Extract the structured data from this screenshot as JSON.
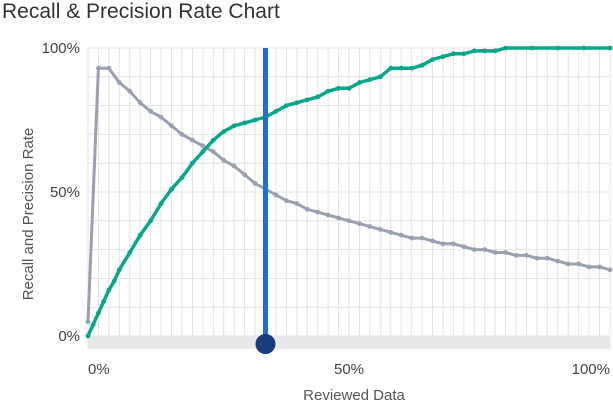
{
  "chart_data": {
    "type": "line",
    "title": "Recall & Precision Rate Chart",
    "xlabel": "Reviewed Data",
    "ylabel": "Recall and Precision Rate",
    "xlim": [
      0,
      100
    ],
    "ylim": [
      0,
      100
    ],
    "x_ticks": [
      "0%",
      "50%",
      "100%"
    ],
    "y_ticks": [
      "0%",
      "50%",
      "100%"
    ],
    "grid": true,
    "colors": {
      "recall": "#0aa68a",
      "precision": "#9aa0b0",
      "marker": "#1f6fd1",
      "marker_handle": "#173e7a"
    },
    "marker_x": 34,
    "series": [
      {
        "values": [
          [
            0,
            0
          ],
          [
            1,
            4
          ],
          [
            2,
            8
          ],
          [
            3,
            12
          ],
          [
            4,
            16
          ],
          [
            5,
            19
          ],
          [
            6,
            23
          ],
          [
            8,
            29
          ],
          [
            10,
            35
          ],
          [
            12,
            40
          ],
          [
            14,
            46
          ],
          [
            16,
            51
          ],
          [
            18,
            55
          ],
          [
            20,
            60
          ],
          [
            22,
            64
          ],
          [
            24,
            68
          ],
          [
            26,
            71
          ],
          [
            28,
            73
          ],
          [
            30,
            74
          ],
          [
            32,
            75
          ],
          [
            34,
            76
          ],
          [
            36,
            78
          ],
          [
            38,
            80
          ],
          [
            40,
            81
          ],
          [
            42,
            82
          ],
          [
            44,
            83
          ],
          [
            46,
            85
          ],
          [
            48,
            86
          ],
          [
            50,
            86
          ],
          [
            52,
            88
          ],
          [
            54,
            89
          ],
          [
            56,
            90
          ],
          [
            58,
            93
          ],
          [
            60,
            93
          ],
          [
            62,
            93
          ],
          [
            64,
            94
          ],
          [
            66,
            96
          ],
          [
            68,
            97
          ],
          [
            70,
            98
          ],
          [
            72,
            98
          ],
          [
            74,
            99
          ],
          [
            76,
            99
          ],
          [
            78,
            99
          ],
          [
            80,
            100
          ],
          [
            85,
            100
          ],
          [
            90,
            100
          ],
          [
            95,
            100
          ],
          [
            100,
            100
          ]
        ]
      },
      {
        "values": [
          [
            0,
            5
          ],
          [
            2,
            93
          ],
          [
            4,
            93
          ],
          [
            6,
            88
          ],
          [
            8,
            85
          ],
          [
            10,
            81
          ],
          [
            12,
            78
          ],
          [
            14,
            76
          ],
          [
            16,
            73
          ],
          [
            18,
            70
          ],
          [
            20,
            68
          ],
          [
            22,
            66
          ],
          [
            24,
            64
          ],
          [
            26,
            61
          ],
          [
            28,
            59
          ],
          [
            30,
            56
          ],
          [
            32,
            53
          ],
          [
            34,
            51
          ],
          [
            36,
            49
          ],
          [
            38,
            47
          ],
          [
            40,
            46
          ],
          [
            42,
            44
          ],
          [
            44,
            43
          ],
          [
            46,
            42
          ],
          [
            48,
            41
          ],
          [
            50,
            40
          ],
          [
            52,
            39
          ],
          [
            54,
            38
          ],
          [
            56,
            37
          ],
          [
            58,
            36
          ],
          [
            60,
            35
          ],
          [
            62,
            34
          ],
          [
            64,
            34
          ],
          [
            66,
            33
          ],
          [
            68,
            32
          ],
          [
            70,
            32
          ],
          [
            72,
            31
          ],
          [
            74,
            30
          ],
          [
            76,
            30
          ],
          [
            78,
            29
          ],
          [
            80,
            29
          ],
          [
            82,
            28
          ],
          [
            84,
            28
          ],
          [
            86,
            27
          ],
          [
            88,
            27
          ],
          [
            90,
            26
          ],
          [
            92,
            25
          ],
          [
            94,
            25
          ],
          [
            96,
            24
          ],
          [
            98,
            24
          ],
          [
            100,
            23
          ]
        ]
      }
    ]
  }
}
